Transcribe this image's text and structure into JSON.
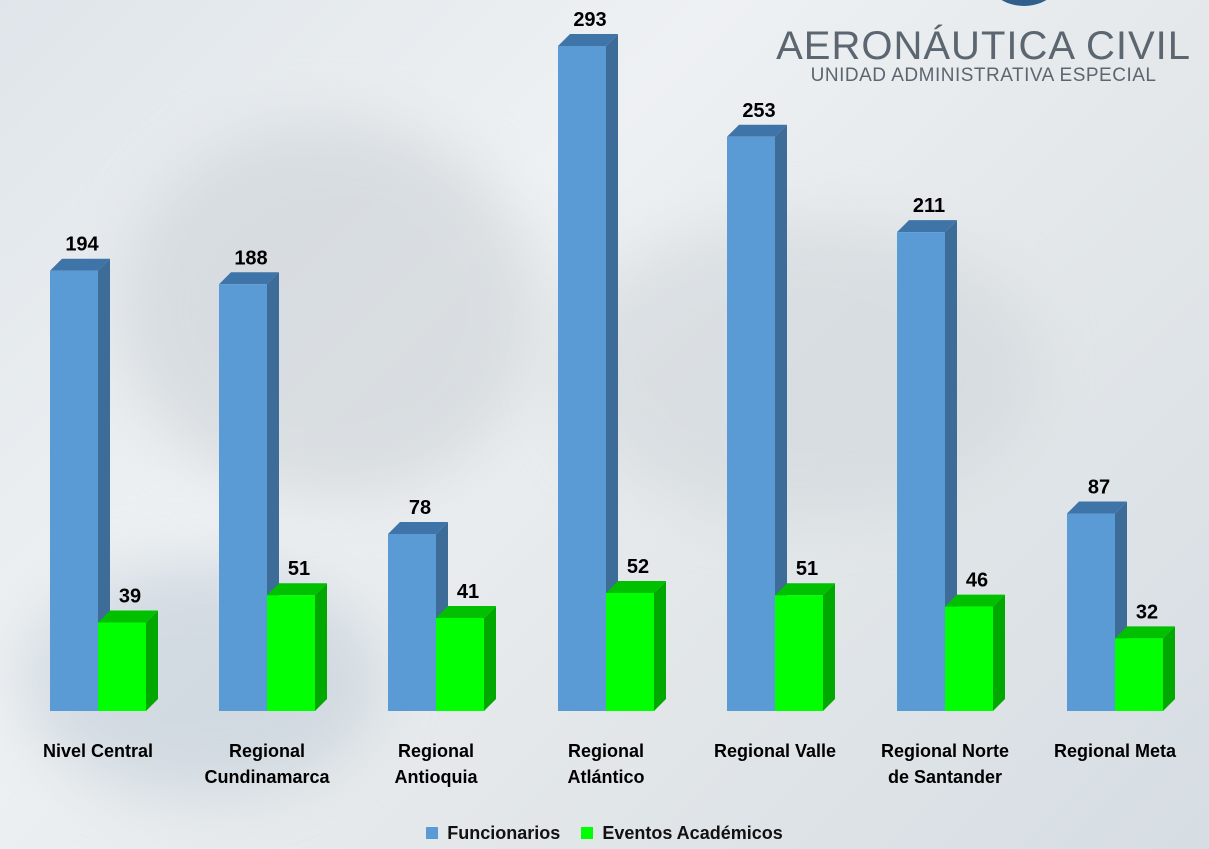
{
  "brand": {
    "title": "AERONÁUTICA CIVIL",
    "subtitle": "UNIDAD ADMINISTRATIVA ESPECIAL"
  },
  "colors": {
    "funcionarios": "#5b9bd5",
    "eventos": "#00ff00"
  },
  "chart_data": {
    "type": "bar",
    "style": "3d-clustered",
    "categories": [
      [
        "Nivel Central"
      ],
      [
        "Regional",
        "Cundinamarca"
      ],
      [
        "Regional",
        "Antioquia"
      ],
      [
        "Regional",
        "Atlántico"
      ],
      [
        "Regional Valle"
      ],
      [
        "Regional Norte",
        "de Santander"
      ],
      [
        "Regional Meta"
      ]
    ],
    "series": [
      {
        "name": "Funcionarios",
        "values": [
          194,
          188,
          78,
          293,
          253,
          211,
          87
        ]
      },
      {
        "name": "Eventos Académicos",
        "values": [
          39,
          51,
          41,
          52,
          51,
          46,
          32
        ]
      }
    ],
    "ylim": [
      0,
      293
    ],
    "grid": false,
    "legend": "bottom-center",
    "data_labels": true
  }
}
